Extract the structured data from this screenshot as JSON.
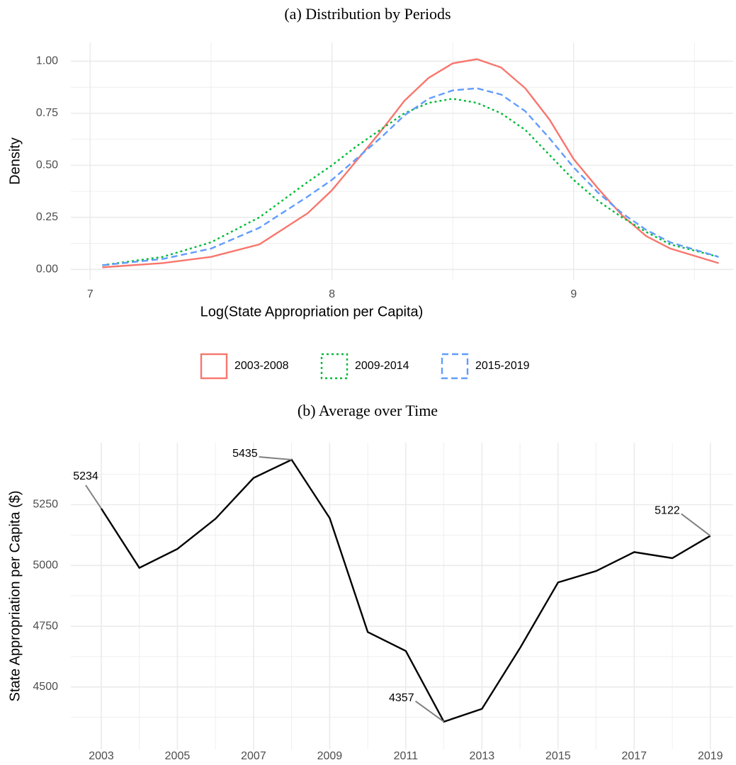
{
  "chart_data": [
    {
      "type": "line",
      "title": "(a) Distribution by Periods",
      "x_label": "Log(State Appropriation per Capita)",
      "y_label": "Density",
      "x": [
        7.05,
        7.3,
        7.5,
        7.7,
        7.9,
        8.0,
        8.1,
        8.2,
        8.3,
        8.4,
        8.5,
        8.6,
        8.7,
        8.8,
        8.9,
        9.0,
        9.1,
        9.2,
        9.3,
        9.4,
        9.6
      ],
      "series": [
        {
          "name": "2003-2008",
          "color": "#f8766d",
          "dash": "solid",
          "values": [
            0.01,
            0.03,
            0.06,
            0.12,
            0.27,
            0.38,
            0.52,
            0.66,
            0.81,
            0.92,
            0.99,
            1.01,
            0.97,
            0.87,
            0.72,
            0.53,
            0.39,
            0.26,
            0.16,
            0.1,
            0.03
          ]
        },
        {
          "name": "2009-2014",
          "color": "#00ba38",
          "dash": "dotted",
          "values": [
            0.02,
            0.06,
            0.13,
            0.25,
            0.42,
            0.5,
            0.59,
            0.67,
            0.75,
            0.8,
            0.82,
            0.8,
            0.75,
            0.67,
            0.55,
            0.43,
            0.33,
            0.25,
            0.18,
            0.12,
            0.06
          ]
        },
        {
          "name": "2015-2019",
          "color": "#619cff",
          "dash": "dashed",
          "values": [
            0.02,
            0.05,
            0.1,
            0.2,
            0.35,
            0.43,
            0.53,
            0.63,
            0.74,
            0.82,
            0.86,
            0.87,
            0.84,
            0.76,
            0.63,
            0.49,
            0.37,
            0.27,
            0.19,
            0.13,
            0.06
          ]
        }
      ],
      "xlim": [
        6.92,
        9.66
      ],
      "ylim": [
        -0.05,
        1.09
      ],
      "xticks": [
        7,
        8,
        9
      ],
      "yticks": [
        {
          "value": 0,
          "label": "0.00"
        },
        {
          "value": 0.25,
          "label": "0.25"
        },
        {
          "value": 0.5,
          "label": "0.50"
        },
        {
          "value": 0.75,
          "label": "0.75"
        },
        {
          "value": 1,
          "label": "1.00"
        }
      ],
      "grid": true,
      "legend": "bottom"
    },
    {
      "type": "line",
      "title": "(b) Average over Time",
      "y_label": "State Appropriation per Capita ($)",
      "x": [
        2003,
        2004,
        2005,
        2006,
        2007,
        2008,
        2009,
        2010,
        2011,
        2012,
        2013,
        2014,
        2015,
        2016,
        2017,
        2018,
        2019
      ],
      "series": [
        {
          "color": "#000000",
          "dash": "solid",
          "values": [
            5234,
            4990,
            5068,
            5192,
            5360,
            5435,
            5195,
            4726,
            4648,
            4357,
            4410,
            4660,
            4930,
            4977,
            5055,
            5030,
            5122
          ],
          "value_labels": [
            "5234",
            null,
            null,
            null,
            null,
            "5435",
            null,
            null,
            null,
            "4357",
            null,
            null,
            null,
            null,
            null,
            null,
            "5122"
          ]
        }
      ],
      "xlim": [
        2002.2,
        2019.6
      ],
      "ylim": [
        4243,
        5505
      ],
      "xticks": [
        2003,
        2005,
        2007,
        2009,
        2011,
        2013,
        2015,
        2017,
        2019
      ],
      "yticks": [
        4500,
        4750,
        5000,
        5250
      ],
      "grid": true
    }
  ]
}
